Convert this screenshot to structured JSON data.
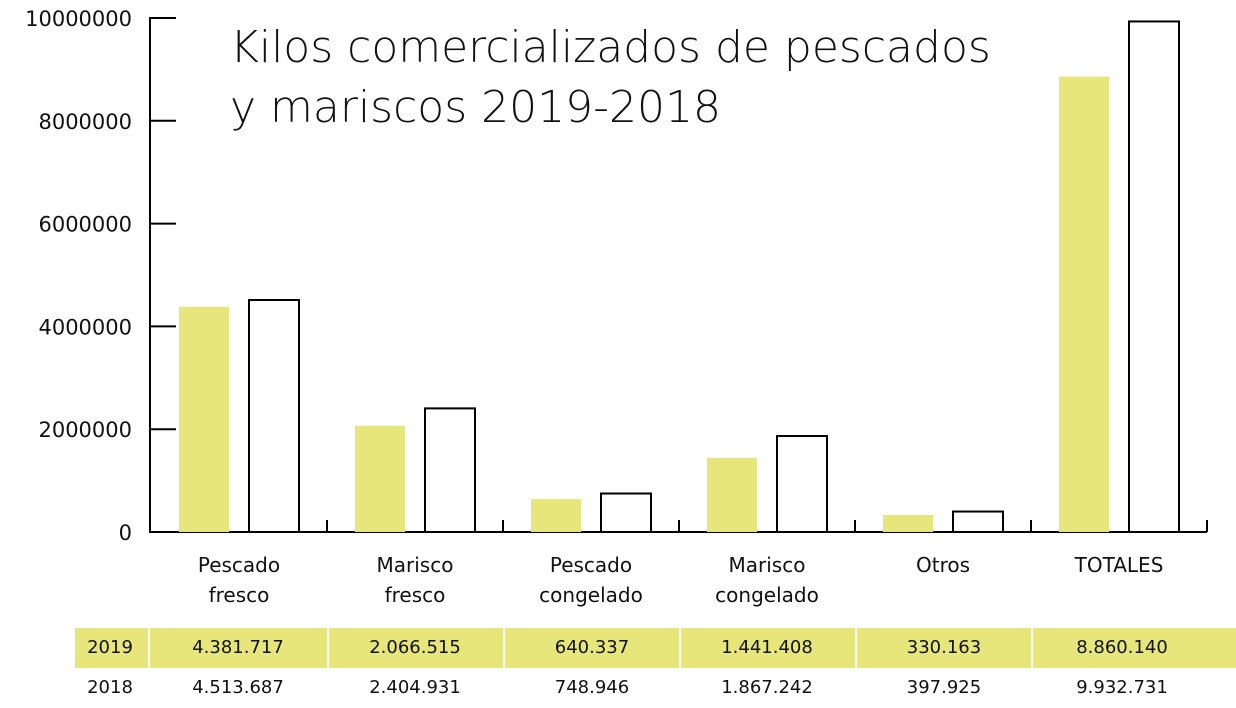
{
  "chart_data": {
    "type": "bar",
    "title": "Kilos comercializados de pescados y mariscos 2019-2018",
    "categories": [
      "Pescado fresco",
      "Marisco fresco",
      "Pescado congelado",
      "Marisco congelado",
      "Otros",
      "TOTALES"
    ],
    "series": [
      {
        "name": "2019",
        "color": "#e6e67a",
        "values": [
          4381717,
          2066515,
          640337,
          1441408,
          330163,
          8860140
        ],
        "value_labels": [
          "4.381.717",
          "2.066.515",
          "640.337",
          "1.441.408",
          "330.163",
          "8.860.140"
        ]
      },
      {
        "name": "2018",
        "color": "#ffffff",
        "values": [
          4513687,
          2404931,
          748946,
          1867242,
          397925,
          9932731
        ],
        "value_labels": [
          "4.513.687",
          "2.404.931",
          "748.946",
          "1.867.242",
          "397.925",
          "9.932.731"
        ]
      }
    ],
    "ylim": [
      0,
      10000000
    ],
    "yticks": [
      0,
      2000000,
      4000000,
      6000000,
      8000000,
      10000000
    ]
  }
}
